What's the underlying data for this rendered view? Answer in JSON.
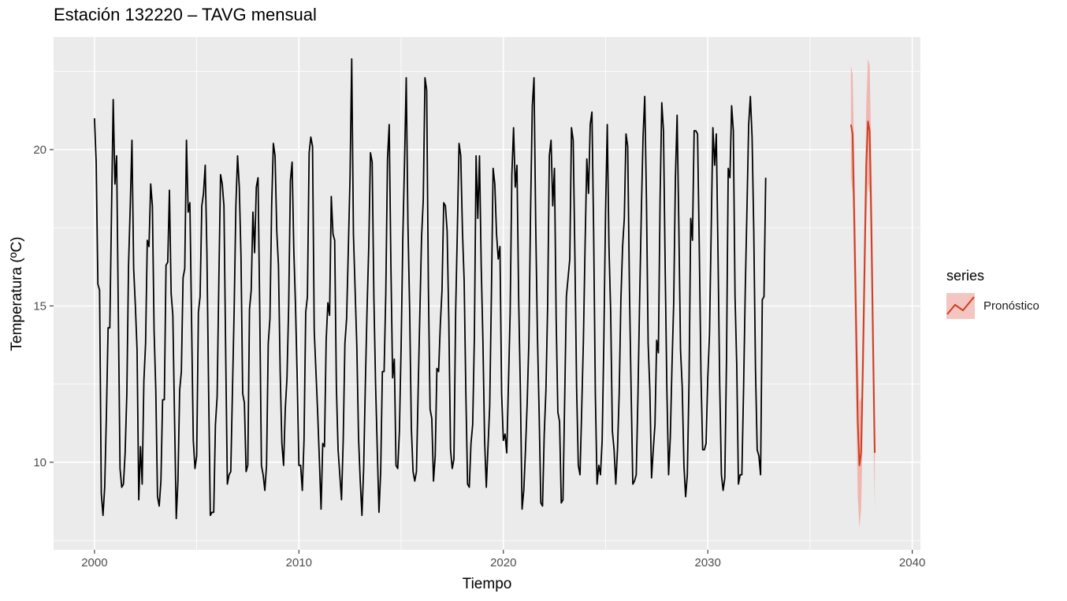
{
  "chart_data": {
    "type": "line",
    "title": "Estación 132220 – TAVG mensual",
    "xlabel": "Tiempo",
    "ylabel": "Temperatura (ºC)",
    "xlim": [
      1998.0,
      2040.4
    ],
    "ylim": [
      7.2,
      23.6
    ],
    "x_ticks": [
      2000,
      2010,
      2020,
      2030,
      2040
    ],
    "y_ticks": [
      10,
      15,
      20
    ],
    "grid": true,
    "legend": {
      "title": "series",
      "position": "right",
      "entries": [
        {
          "label": "Pronóstico",
          "color": "#cd3f24",
          "band_color": "#f2a49c"
        }
      ]
    },
    "observed": {
      "start": 2000.0,
      "step": 0.08333,
      "color": "#000000",
      "values": [
        21.0,
        19.6,
        15.7,
        15.5,
        9.0,
        8.3,
        9.2,
        11.5,
        14.3,
        14.3,
        18.0,
        21.6,
        18.9,
        19.8,
        14.8,
        9.8,
        9.2,
        9.3,
        10.3,
        12.2,
        16.3,
        18.2,
        20.3,
        16.2,
        15.0,
        13.6,
        8.8,
        10.5,
        9.3,
        12.6,
        13.8,
        17.1,
        16.9,
        18.9,
        18.2,
        14.2,
        12.3,
        8.9,
        8.6,
        9.4,
        12.0,
        12.0,
        16.3,
        16.4,
        18.7,
        15.4,
        14.7,
        11.4,
        8.2,
        9.4,
        12.3,
        12.9,
        15.9,
        16.2,
        20.3,
        18.0,
        18.3,
        14.5,
        10.7,
        9.8,
        10.2,
        14.8,
        15.3,
        18.2,
        18.6,
        19.5,
        16.7,
        12.3,
        8.3,
        8.4,
        8.4,
        11.2,
        12.1,
        15.8,
        19.2,
        18.9,
        18.2,
        13.6,
        9.3,
        9.6,
        9.7,
        12.3,
        14.9,
        18.2,
        19.8,
        18.8,
        16.6,
        12.2,
        11.9,
        9.7,
        9.9,
        14.9,
        15.5,
        18.0,
        16.7,
        18.8,
        19.1,
        14.9,
        9.9,
        9.6,
        9.1,
        9.9,
        13.8,
        14.6,
        18.2,
        20.2,
        19.8,
        17.4,
        16.3,
        12.9,
        10.6,
        9.9,
        11.7,
        12.7,
        15.0,
        19.0,
        19.6,
        16.8,
        15.0,
        12.7,
        9.9,
        9.9,
        9.1,
        10.7,
        14.8,
        15.3,
        19.9,
        20.4,
        20.1,
        14.2,
        12.9,
        11.6,
        10.1,
        8.5,
        10.6,
        10.5,
        13.9,
        15.1,
        14.7,
        18.5,
        17.3,
        17.1,
        12.4,
        10.4,
        9.6,
        8.8,
        10.7,
        13.8,
        14.6,
        16.8,
        19.1,
        22.9,
        17.3,
        15.5,
        13.7,
        10.8,
        9.4,
        8.3,
        9.8,
        12.5,
        14.9,
        16.9,
        19.9,
        19.6,
        15.3,
        12.5,
        10.4,
        8.4,
        9.7,
        12.9,
        12.9,
        15.4,
        19.7,
        20.8,
        16.3,
        12.7,
        13.3,
        9.9,
        9.8,
        11.0,
        13.7,
        17.2,
        19.6,
        22.3,
        17.6,
        14.9,
        11.1,
        9.7,
        9.4,
        9.7,
        12.3,
        14.8,
        17.2,
        18.4,
        22.3,
        21.9,
        15.6,
        11.7,
        11.4,
        9.4,
        10.2,
        13.0,
        12.9,
        14.4,
        15.5,
        18.3,
        18.2,
        17.4,
        14.5,
        10.4,
        9.8,
        10.1,
        14.8,
        17.4,
        20.2,
        19.8,
        17.4,
        15.8,
        12.2,
        9.3,
        9.2,
        10.6,
        11.2,
        14.0,
        19.8,
        17.8,
        19.8,
        16.3,
        13.9,
        10.7,
        9.2,
        10.5,
        11.8,
        15.4,
        19.4,
        18.9,
        17.3,
        16.5,
        16.9,
        12.2,
        10.7,
        10.9,
        10.3,
        12.5,
        14.8,
        19.2,
        20.7,
        18.8,
        19.5,
        15.2,
        12.3,
        8.5,
        9.1,
        10.4,
        11.9,
        13.9,
        18.1,
        21.4,
        22.3,
        17.6,
        14.1,
        11.6,
        8.7,
        8.6,
        10.9,
        12.3,
        15.0,
        19.8,
        20.3,
        18.2,
        19.4,
        14.6,
        11.6,
        11.3,
        8.7,
        8.8,
        12.0,
        15.3,
        15.9,
        16.5,
        20.7,
        20.3,
        16.6,
        12.4,
        9.9,
        9.6,
        11.7,
        13.9,
        17.0,
        19.7,
        18.6,
        20.8,
        21.2,
        17.4,
        12.2,
        9.3,
        9.9,
        9.6,
        10.7,
        13.9,
        18.0,
        20.8,
        16.9,
        14.8,
        11.0,
        10.4,
        9.3,
        10.4,
        12.2,
        15.2,
        16.9,
        17.8,
        20.5,
        20.1,
        15.6,
        12.3,
        9.3,
        9.4,
        9.6,
        12.1,
        15.2,
        18.0,
        20.4,
        21.7,
        18.4,
        13.8,
        12.3,
        9.5,
        10.4,
        11.2,
        13.9,
        13.5,
        18.4,
        21.5,
        20.6,
        16.2,
        12.3,
        9.6,
        10.8,
        13.1,
        15.1,
        19.1,
        21.1,
        17.6,
        13.6,
        12.4,
        9.9,
        8.9,
        9.6,
        12.6,
        17.8,
        17.1,
        20.6,
        20.6,
        20.5,
        16.9,
        12.8,
        10.4,
        10.4,
        10.6,
        12.7,
        14.1,
        17.4,
        20.7,
        19.5,
        20.5,
        16.7,
        12.5,
        9.6,
        9.1,
        9.5,
        13.3,
        19.4,
        19.1,
        21.4,
        20.6,
        15.3,
        13.1,
        9.3,
        9.6,
        9.6,
        12.3,
        15.5,
        18.1,
        20.8,
        21.7,
        20.4,
        17.4,
        13.0,
        10.4,
        10.2,
        9.6,
        15.2,
        15.3,
        19.1
      ]
    },
    "forecast": {
      "start": 2037.0,
      "step": 0.08333,
      "color": "#cd3f24",
      "band_color": "#f2a49c",
      "values": [
        20.8,
        20.5,
        17.7,
        14.5,
        11.3,
        9.9,
        10.3,
        13.0,
        16.2,
        19.5,
        20.9,
        20.6,
        17.6,
        13.8,
        10.3
      ],
      "lower": [
        19.1,
        18.6,
        15.6,
        12.2,
        8.9,
        7.9,
        8.5,
        11.2,
        14.3,
        17.6,
        18.9,
        18.6,
        15.4,
        11.5,
        8.5
      ],
      "upper": [
        22.7,
        22.4,
        19.7,
        16.6,
        13.6,
        11.9,
        12.1,
        14.8,
        18.1,
        21.4,
        22.9,
        22.7,
        19.8,
        16.0,
        12.1
      ]
    }
  }
}
